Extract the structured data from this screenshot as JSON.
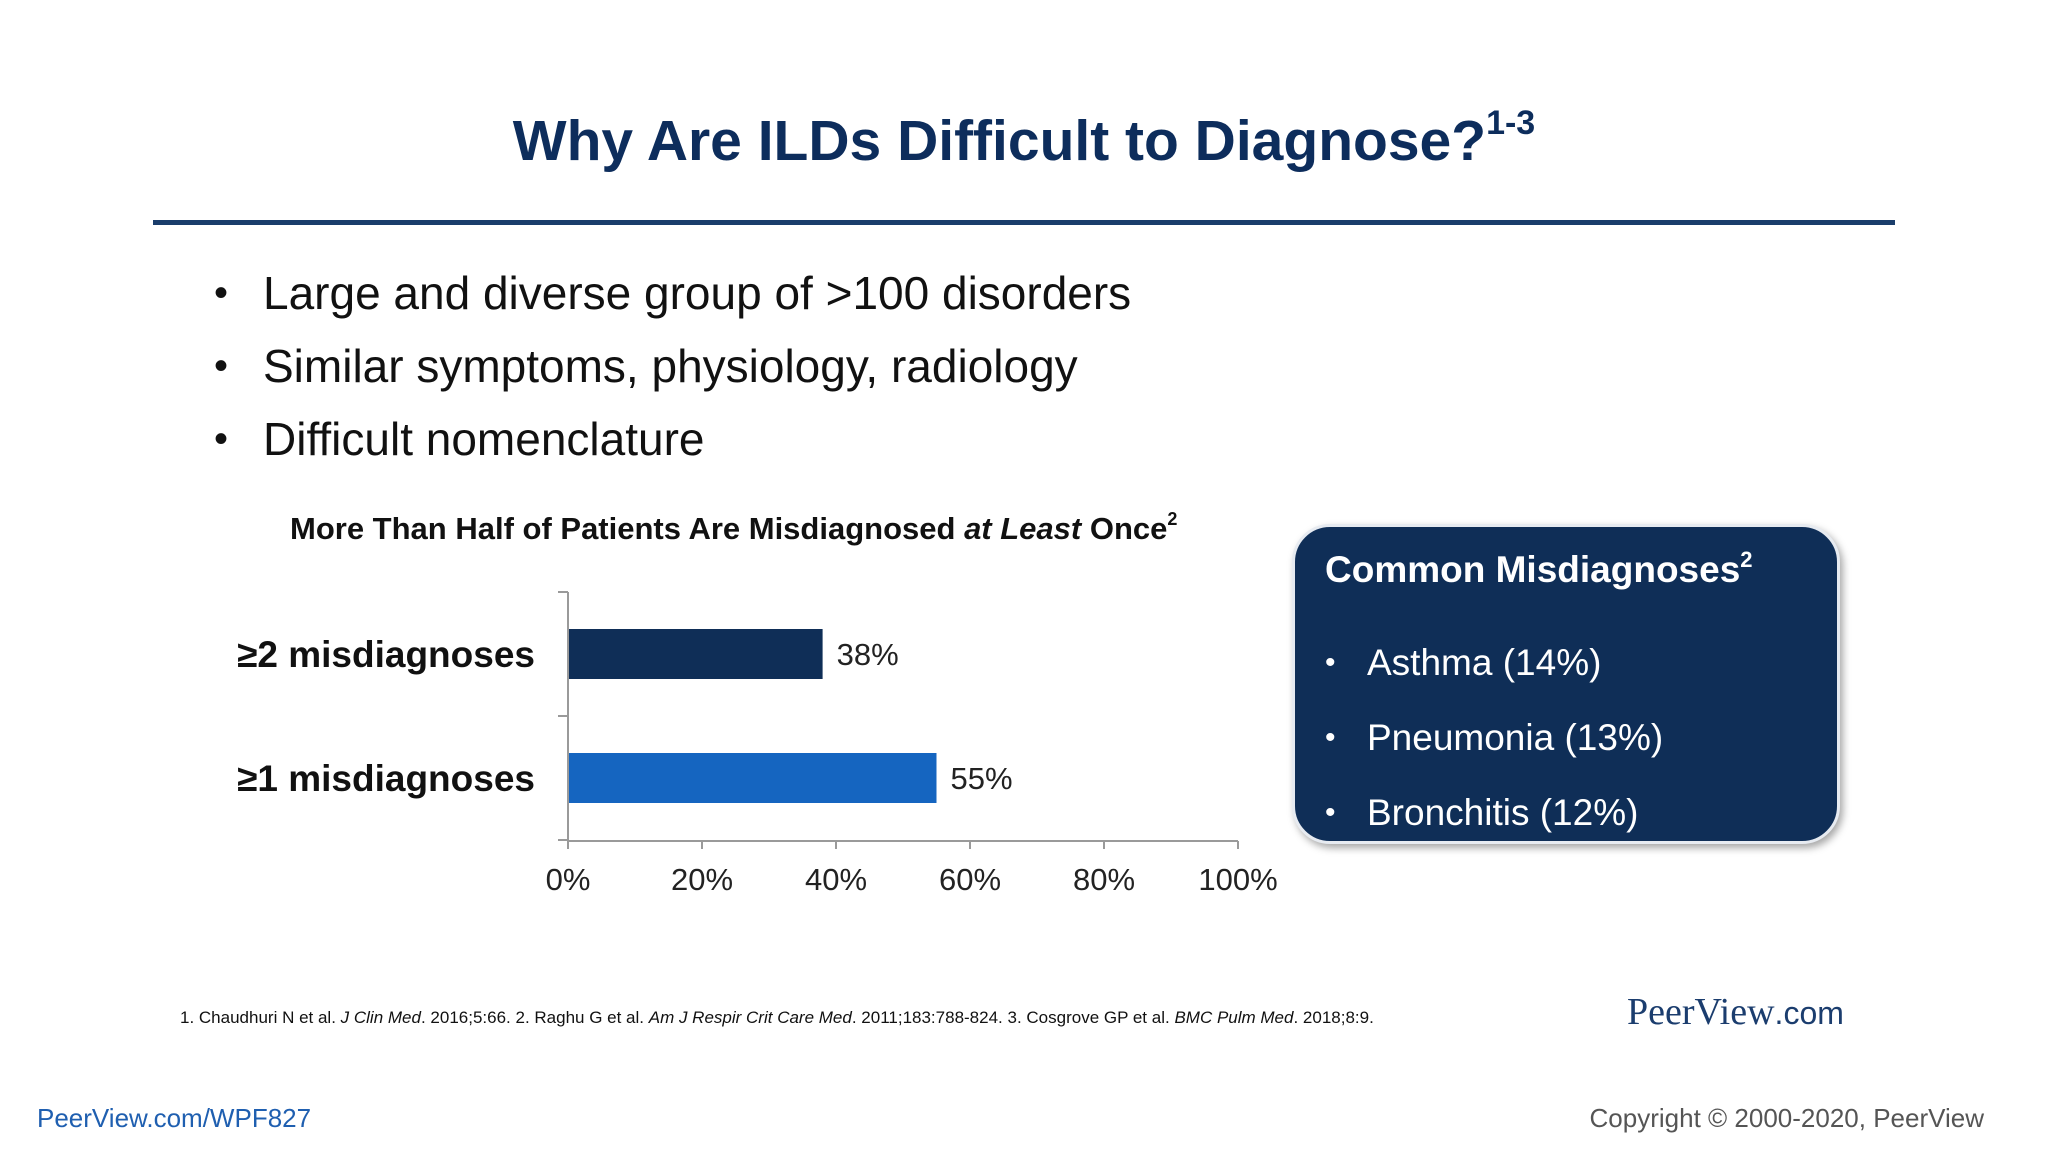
{
  "slide": {
    "title": "Why Are ILDs Difficult to Diagnose?",
    "title_superscript": "1-3",
    "bullets": [
      "Large and diverse group of >100 disorders",
      "Similar symptoms, physiology, radiology",
      "Difficult nomenclature"
    ]
  },
  "chart_title": {
    "part1": "More Than Half of Patients Are Misdiagnosed ",
    "italic": "at Least",
    "part2": " Once",
    "superscript": "2"
  },
  "chart_data": {
    "type": "bar",
    "orientation": "horizontal",
    "title": "More Than Half of Patients Are Misdiagnosed at Least Once",
    "categories": [
      "≥2 misdiagnoses",
      "≥1 misdiagnoses"
    ],
    "values": [
      38,
      55
    ],
    "value_labels": [
      "38%",
      "55%"
    ],
    "bar_colors": [
      "#0f2e57",
      "#1565c0"
    ],
    "xlim": [
      0,
      100
    ],
    "xticks": [
      0,
      20,
      40,
      60,
      80,
      100
    ],
    "xtick_labels": [
      "0%",
      "20%",
      "40%",
      "60%",
      "80%",
      "100%"
    ],
    "grid": false,
    "legend": "none"
  },
  "callout": {
    "title": "Common Misdiagnoses",
    "title_superscript": "2",
    "items": [
      "Asthma (14%)",
      "Pneumonia (13%)",
      "Bronchitis (12%)"
    ]
  },
  "references": {
    "r1": "1. Chaudhuri N et al. ",
    "r1_journal": "J Clin Med",
    "r1_rest": ". 2016;5:66. 2. Raghu G et al. ",
    "r2_journal": "Am J Respir Crit Care Med",
    "r2_rest": ". 2011;183:788-824. 3. Cosgrove GP et al. ",
    "r3_journal": "BMC Pulm Med",
    "r3_rest": ". 2018;8:9."
  },
  "brand": {
    "name": "PeerView",
    "suffix": ".com"
  },
  "footer": {
    "link": "PeerView.com/WPF827",
    "copyright": "Copyright © 2000-2020, PeerView"
  },
  "colors": {
    "title": "#0d2d5c",
    "navy": "#0f2e57",
    "blue": "#1565c0",
    "link": "#1f5fb0"
  }
}
